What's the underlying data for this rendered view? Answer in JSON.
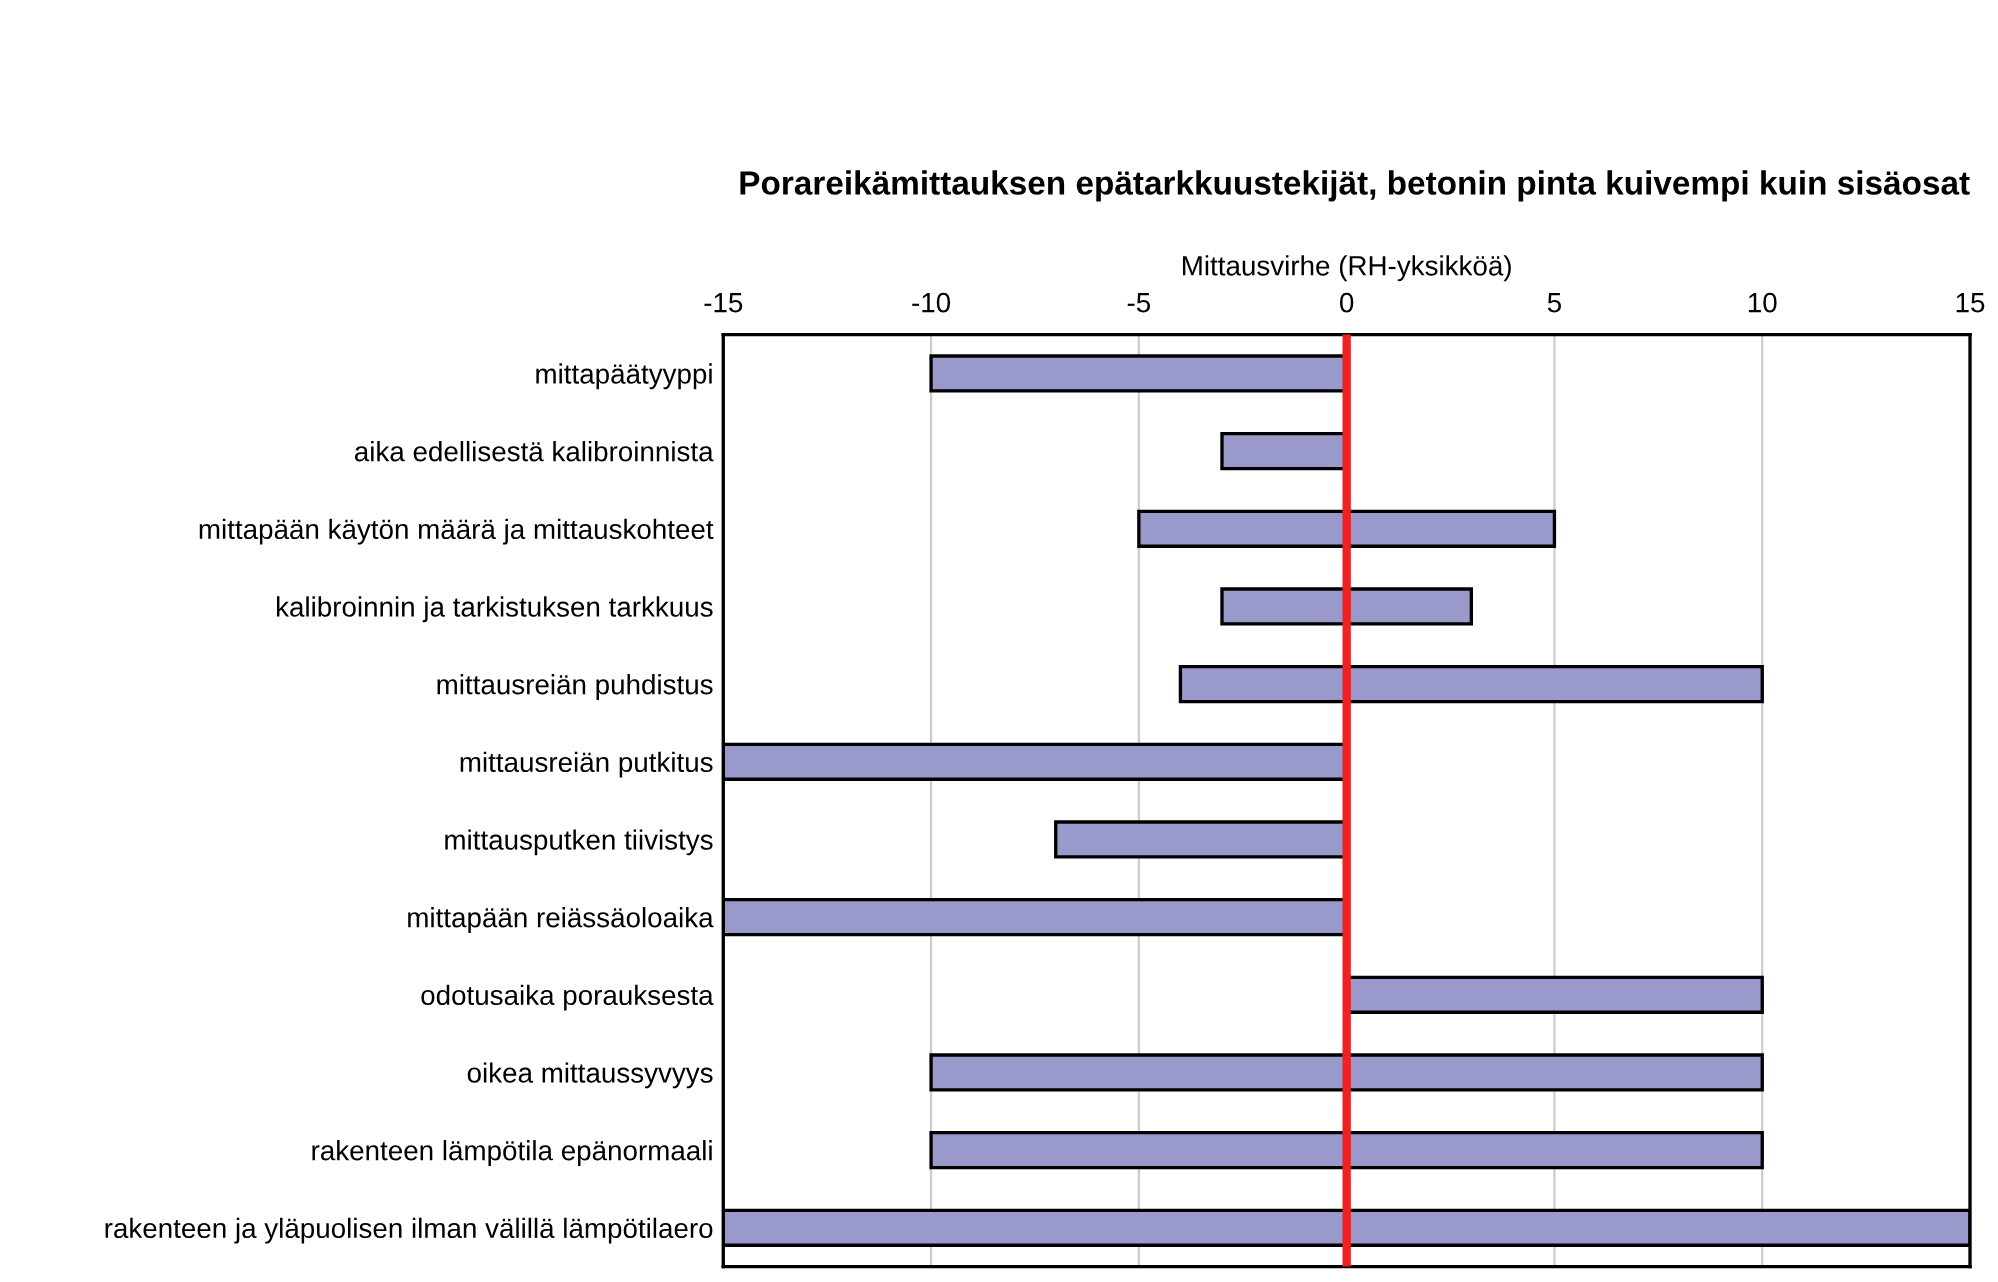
{
  "chart_data": {
    "type": "bar",
    "orientation": "horizontal",
    "title": "Porareikämittauksen epätarkkuustekijät, betonin pinta kuivempi kuin sisäosat",
    "xlabel": "Mittausvirhe (RH-yksikköä)",
    "categories": [
      "mittapäätyyppi",
      "aika edellisestä kalibroinnista",
      "mittapään käytön määrä ja mittauskohteet",
      "kalibroinnin ja tarkistuksen tarkkuus",
      "mittausreiän puhdistus",
      "mittausreiän putkitus",
      "mittausputken tiivistys",
      "mittapään reiässäoloaika",
      "odotusaika porauksesta",
      "oikea mittaussyvyys",
      "rakenteen lämpötila epänormaali",
      "rakenteen ja yläpuolisen ilman välillä lämpötilaero"
    ],
    "base": [
      -10,
      -3,
      -5,
      -3,
      -4,
      -15,
      -7,
      -15,
      0,
      -10,
      -10,
      -15
    ],
    "values": [
      10,
      3,
      10,
      6,
      14,
      15,
      7,
      15,
      10,
      20,
      20,
      30
    ],
    "color": "#9999cc",
    "xlim": [
      -15,
      15
    ],
    "xticks": [
      -15,
      -10,
      -5,
      0,
      5,
      10,
      15
    ],
    "grid": "x",
    "ref_lines": [
      {
        "axis": "x",
        "value": 0,
        "color": "#ee2222"
      }
    ]
  }
}
